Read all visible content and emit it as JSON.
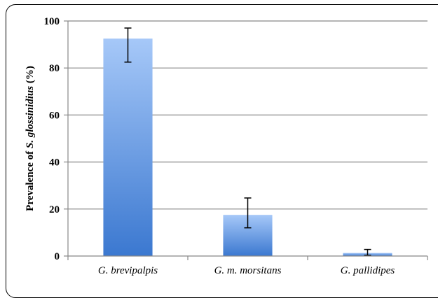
{
  "chart_data": {
    "type": "bar",
    "title": "",
    "xlabel": "",
    "ylabel_parts": [
      "Prevalence of ",
      "S. glossinidius",
      " (%)"
    ],
    "categories": [
      "G. brevipalpis",
      "G. m. morsitans",
      "G. pallidipes"
    ],
    "values": [
      92.5,
      17.5,
      1.3
    ],
    "error_low": [
      82.5,
      12.0,
      0.3
    ],
    "error_high": [
      97.0,
      24.7,
      2.8
    ],
    "ylim": [
      0,
      100
    ],
    "yticks": [
      0,
      20,
      40,
      60,
      80,
      100
    ],
    "grid": true,
    "bar_color_top": "#a6c8f8",
    "bar_color_bottom": "#3b78d0",
    "grid_color": "#888888"
  }
}
